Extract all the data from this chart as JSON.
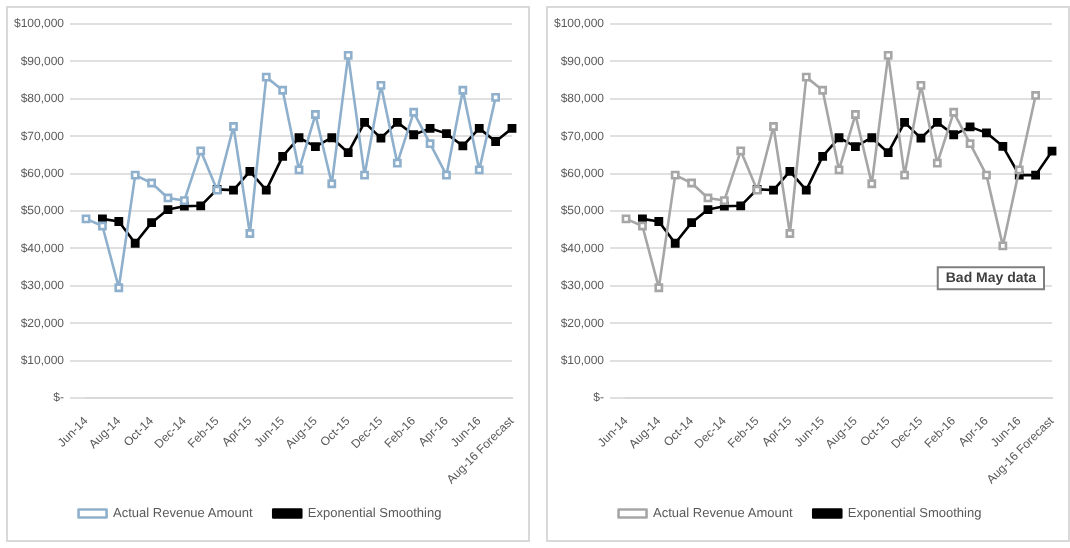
{
  "chart_data": [
    {
      "type": "line",
      "categories": [
        "Jun-14",
        null,
        "Aug-14",
        null,
        "Oct-14",
        null,
        "Dec-14",
        null,
        "Feb-15",
        null,
        "Apr-15",
        null,
        "Jun-15",
        null,
        "Aug-15",
        null,
        "Oct-15",
        null,
        "Dec-15",
        null,
        "Feb-16",
        null,
        "Apr-16",
        null,
        "Jun-16",
        null,
        "Aug-16 Forecast"
      ],
      "series": [
        {
          "name": "Actual Revenue Amount",
          "color": "#8fb0cc",
          "marker": "square",
          "values": [
            47900,
            46000,
            29500,
            59600,
            57500,
            53500,
            52800,
            66100,
            55600,
            72600,
            44000,
            85800,
            82300,
            61000,
            75800,
            57300,
            91600,
            59600,
            83600,
            62800,
            76400,
            68000,
            59600,
            82300,
            61000,
            80400,
            null
          ]
        },
        {
          "name": "Exponential Smoothing",
          "color": "#000000",
          "marker": "square",
          "values": [
            null,
            47900,
            47200,
            41400,
            46900,
            50400,
            51300,
            51400,
            55800,
            55600,
            60600,
            55600,
            64600,
            69600,
            67200,
            69600,
            65600,
            73700,
            69500,
            73700,
            70400,
            72100,
            70700,
            67400,
            72100,
            68600,
            72100
          ]
        }
      ],
      "ylim": [
        0,
        100000
      ],
      "yticks": [
        {
          "value": 0,
          "label": "$-"
        },
        {
          "value": 10000,
          "label": "$10,000"
        },
        {
          "value": 20000,
          "label": "$20,000"
        },
        {
          "value": 30000,
          "label": "$30,000"
        },
        {
          "value": 40000,
          "label": "$40,000"
        },
        {
          "value": 50000,
          "label": "$50,000"
        },
        {
          "value": 60000,
          "label": "$60,000"
        },
        {
          "value": 70000,
          "label": "$70,000"
        },
        {
          "value": 80000,
          "label": "$80,000"
        },
        {
          "value": 90000,
          "label": "$90,000"
        },
        {
          "value": 100000,
          "label": "$100,000"
        }
      ],
      "grid": "y",
      "legend": "bottom"
    },
    {
      "type": "line",
      "categories": [
        "Jun-14",
        null,
        "Aug-14",
        null,
        "Oct-14",
        null,
        "Dec-14",
        null,
        "Feb-15",
        null,
        "Apr-15",
        null,
        "Jun-15",
        null,
        "Aug-15",
        null,
        "Oct-15",
        null,
        "Dec-15",
        null,
        "Feb-16",
        null,
        "Apr-16",
        null,
        "Jun-16",
        null,
        "Aug-16 Forecast"
      ],
      "series": [
        {
          "name": "Actual Revenue Amount",
          "color": "#a6a6a6",
          "marker": "square",
          "values": [
            47900,
            46000,
            29500,
            59600,
            57500,
            53500,
            52800,
            66100,
            55600,
            72600,
            44000,
            85800,
            82300,
            61000,
            75800,
            57300,
            91600,
            59600,
            83600,
            62800,
            76400,
            68000,
            59600,
            40700,
            61000,
            80900,
            null
          ]
        },
        {
          "name": "Exponential Smoothing",
          "color": "#000000",
          "marker": "square",
          "values": [
            null,
            47900,
            47200,
            41400,
            46900,
            50400,
            51300,
            51400,
            55800,
            55600,
            60600,
            55600,
            64600,
            69600,
            67200,
            69600,
            65600,
            73700,
            69500,
            73700,
            70400,
            72500,
            70900,
            67300,
            59600,
            59600,
            66000
          ]
        }
      ],
      "ylim": [
        0,
        100000
      ],
      "yticks": [
        {
          "value": 0,
          "label": "$-"
        },
        {
          "value": 10000,
          "label": "$10,000"
        },
        {
          "value": 20000,
          "label": "$20,000"
        },
        {
          "value": 30000,
          "label": "$30,000"
        },
        {
          "value": 40000,
          "label": "$40,000"
        },
        {
          "value": 50000,
          "label": "$50,000"
        },
        {
          "value": 60000,
          "label": "$60,000"
        },
        {
          "value": 70000,
          "label": "$70,000"
        },
        {
          "value": 80000,
          "label": "$80,000"
        },
        {
          "value": 90000,
          "label": "$90,000"
        },
        {
          "value": 100000,
          "label": "$100,000"
        }
      ],
      "grid": "y",
      "legend": "bottom",
      "annotations": [
        "Bad May data"
      ]
    }
  ]
}
